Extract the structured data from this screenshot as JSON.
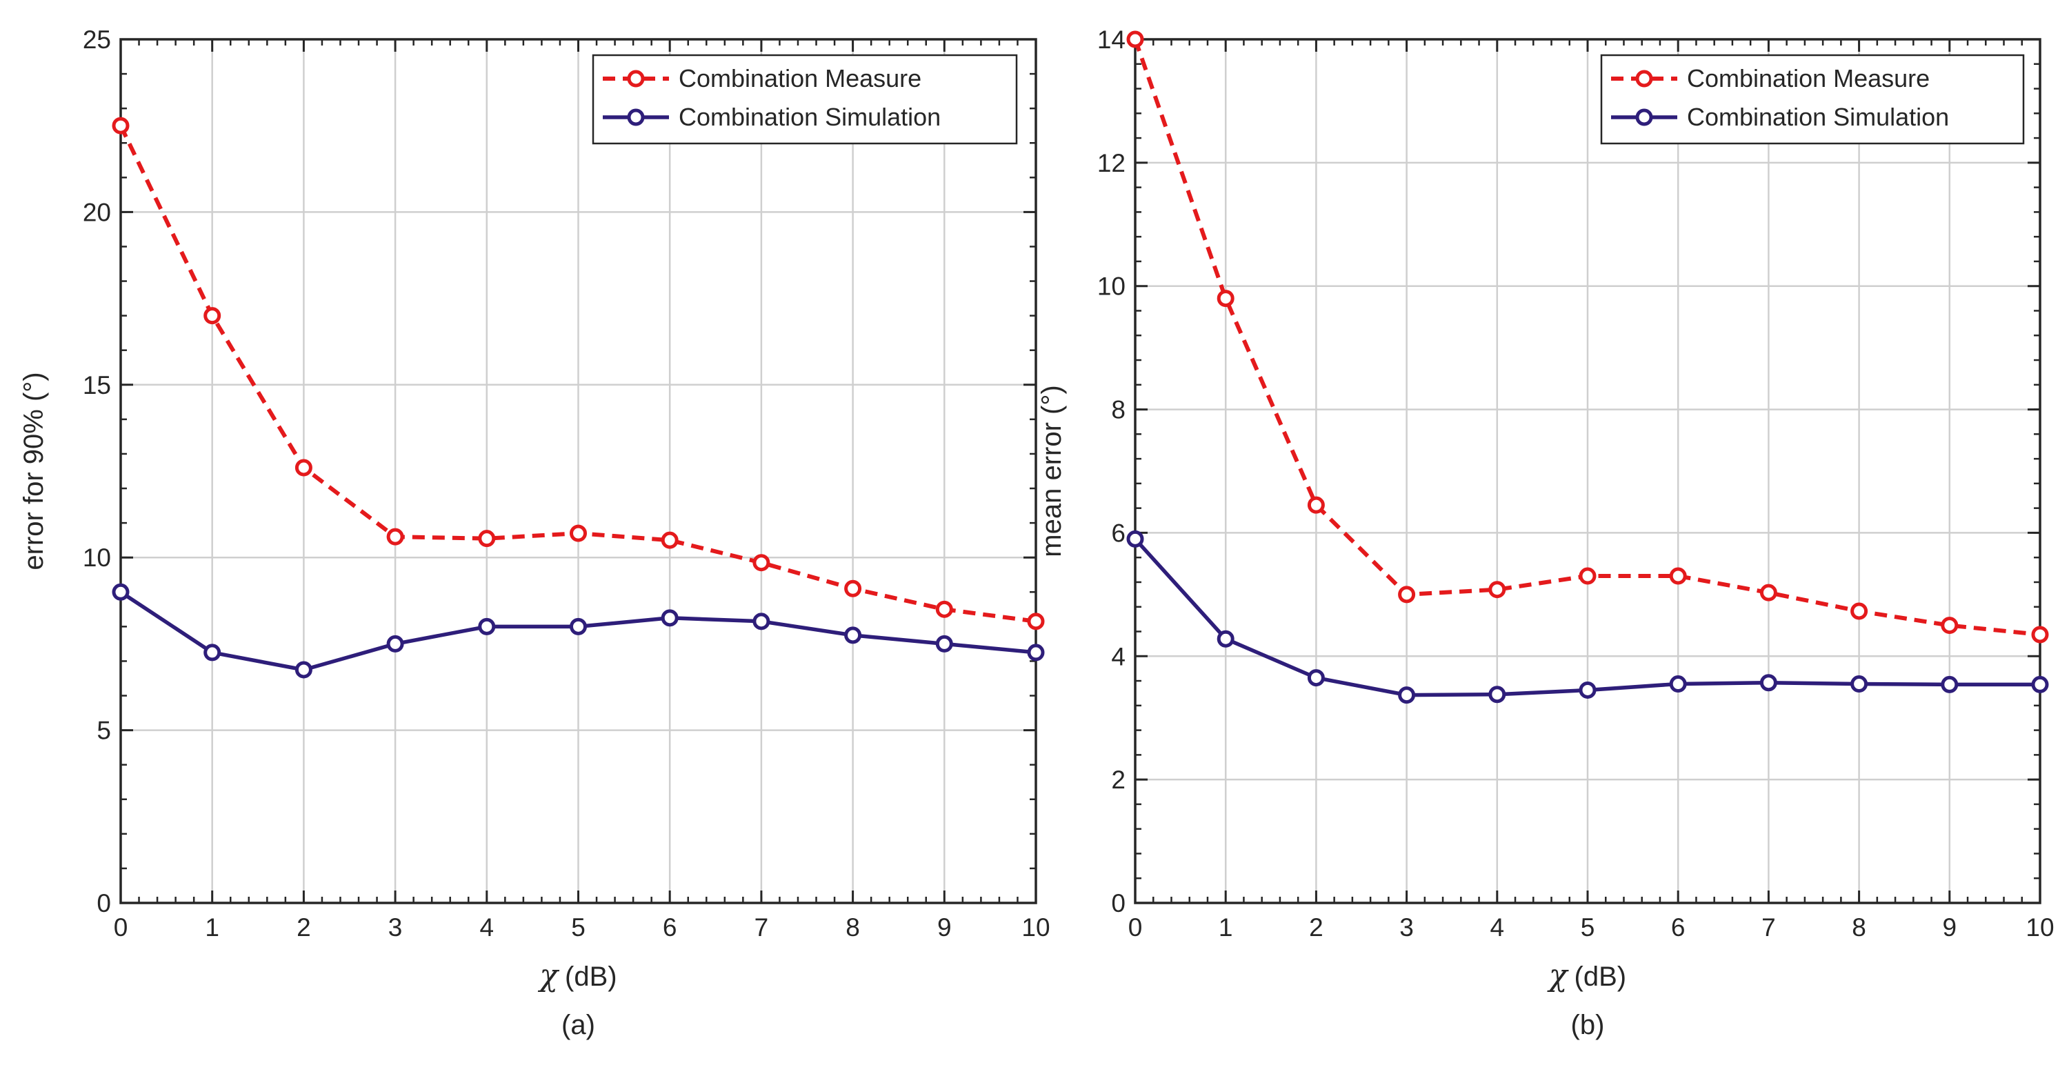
{
  "chart_data": [
    {
      "type": "line",
      "caption": "(a)",
      "xlabel_symbol": "χ",
      "xlabel_unit": "(dB)",
      "ylabel": "error for 90% (°)",
      "xlim": [
        0,
        10
      ],
      "ylim": [
        0,
        25
      ],
      "x_ticks": [
        0,
        1,
        2,
        3,
        4,
        5,
        6,
        7,
        8,
        9,
        10
      ],
      "y_ticks": [
        0,
        5,
        10,
        15,
        20,
        25
      ],
      "grid": true,
      "legend_position": "top-right",
      "x": [
        0,
        1,
        2,
        3,
        4,
        5,
        6,
        7,
        8,
        9,
        10
      ],
      "series": [
        {
          "name": "Combination Measure",
          "color": "#e41a1c",
          "style": "dashed",
          "marker": "circle",
          "values": [
            22.5,
            17.0,
            12.6,
            10.6,
            10.55,
            10.7,
            10.5,
            9.85,
            9.1,
            8.5,
            8.15
          ]
        },
        {
          "name": "Combination Simulation",
          "color": "#2e1e7a",
          "style": "solid",
          "marker": "circle",
          "values": [
            9.0,
            7.25,
            6.75,
            7.5,
            8.0,
            8.0,
            8.25,
            8.15,
            7.75,
            7.5,
            7.25
          ]
        }
      ]
    },
    {
      "type": "line",
      "caption": "(b)",
      "xlabel_symbol": "χ",
      "xlabel_unit": "(dB)",
      "ylabel": "mean error (°)",
      "xlim": [
        0,
        10
      ],
      "ylim": [
        0,
        14
      ],
      "x_ticks": [
        0,
        1,
        2,
        3,
        4,
        5,
        6,
        7,
        8,
        9,
        10
      ],
      "y_ticks": [
        0,
        2,
        4,
        6,
        8,
        10,
        12,
        14
      ],
      "grid": true,
      "legend_position": "top-right",
      "x": [
        0,
        1,
        2,
        3,
        4,
        5,
        6,
        7,
        8,
        9,
        10
      ],
      "series": [
        {
          "name": "Combination Measure",
          "color": "#e41a1c",
          "style": "dashed",
          "marker": "circle",
          "values": [
            14.0,
            9.8,
            6.45,
            5.0,
            5.08,
            5.3,
            5.3,
            5.03,
            4.73,
            4.5,
            4.35
          ]
        },
        {
          "name": "Combination Simulation",
          "color": "#2e1e7a",
          "style": "solid",
          "marker": "circle",
          "values": [
            5.9,
            4.28,
            3.65,
            3.37,
            3.38,
            3.45,
            3.55,
            3.57,
            3.55,
            3.54,
            3.54
          ]
        }
      ]
    }
  ]
}
